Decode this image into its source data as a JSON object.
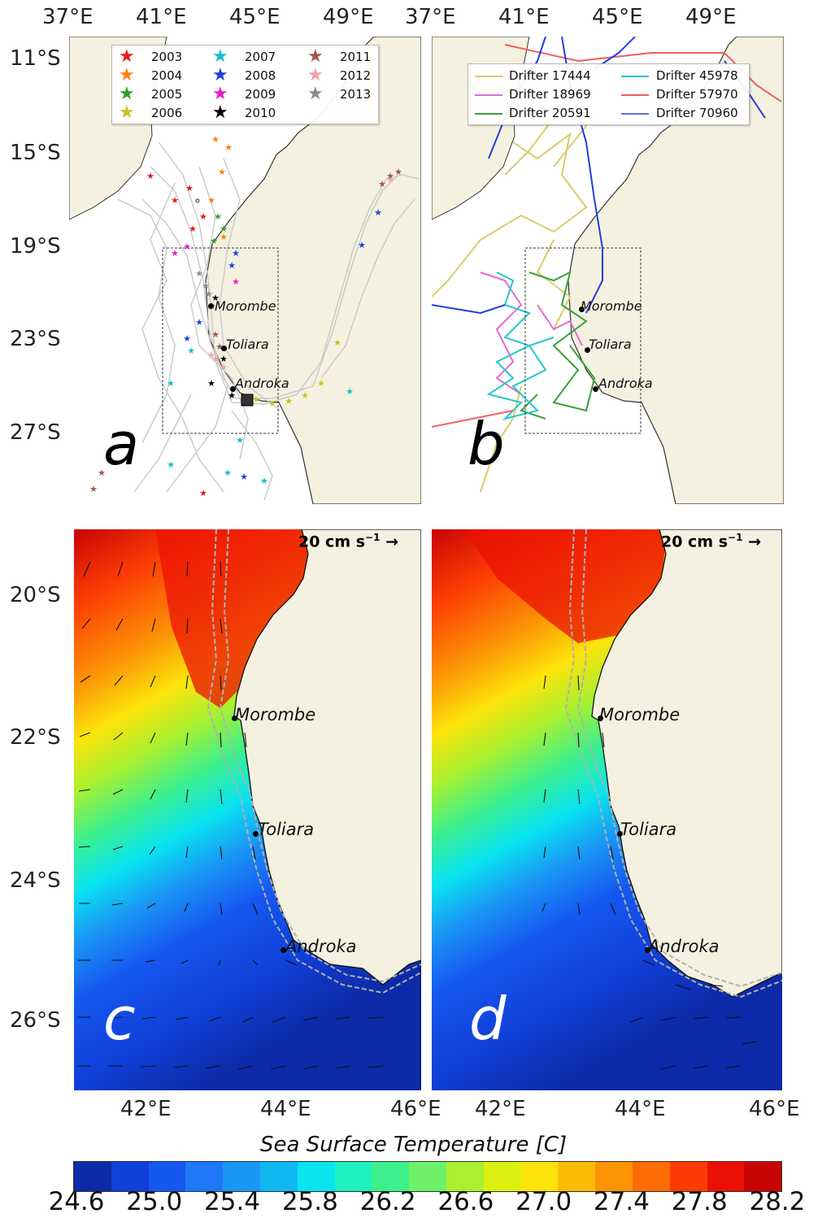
{
  "top_lon_ticks": [
    "37°E",
    "41°E",
    "45°E",
    "49°E"
  ],
  "top_lat_ticks": [
    "11°S",
    "15°S",
    "19°S",
    "23°S",
    "27°S"
  ],
  "bottom_lon_ticks": [
    "42°E",
    "44°E",
    "46°E"
  ],
  "bottom_lat_ticks": [
    "20°S",
    "22°S",
    "24°S",
    "26°S"
  ],
  "places": {
    "morombe": "Morombe",
    "toliara": "Toliara",
    "androka": "Androka"
  },
  "panel_a": {
    "letter": "a",
    "legend": [
      {
        "label": "2003",
        "color": "#e41a1c"
      },
      {
        "label": "2004",
        "color": "#ff7f0e"
      },
      {
        "label": "2005",
        "color": "#2ca02c"
      },
      {
        "label": "2006",
        "color": "#c9c41a"
      },
      {
        "label": "2007",
        "color": "#17becf"
      },
      {
        "label": "2008",
        "color": "#1f3fe0"
      },
      {
        "label": "2009",
        "color": "#e61ec8"
      },
      {
        "label": "2010",
        "color": "#000000"
      },
      {
        "label": "2011",
        "color": "#a0574e"
      },
      {
        "label": "2012",
        "color": "#f4a3a3"
      },
      {
        "label": "2013",
        "color": "#8c8c8c"
      }
    ]
  },
  "panel_b": {
    "letter": "b",
    "legend": [
      {
        "label": "Drifter 17444",
        "color": "#d8cc6a"
      },
      {
        "label": "Drifter 18969",
        "color": "#e46ad2"
      },
      {
        "label": "Drifter 20591",
        "color": "#3aa03a"
      },
      {
        "label": "Drifter 45978",
        "color": "#22c8cc"
      },
      {
        "label": "Drifter 57970",
        "color": "#ee6060"
      },
      {
        "label": "Drifter 70960",
        "color": "#5a6fe0"
      }
    ]
  },
  "panel_c": {
    "letter": "c",
    "scale_label": "20 cm s",
    "scale_exp": "−1"
  },
  "panel_d": {
    "letter": "d",
    "scale_label": "20 cm s",
    "scale_exp": "−1"
  },
  "colorbar": {
    "title": "Sea Surface Temperature [C]",
    "ticks": [
      "24.6",
      "25.0",
      "25.4",
      "25.8",
      "26.2",
      "26.6",
      "27.0",
      "27.4",
      "27.8",
      "28.2"
    ],
    "colors": [
      "#0d2ba8",
      "#1040d8",
      "#1558f0",
      "#1f78f8",
      "#1a96f4",
      "#10b8f2",
      "#08e4f0",
      "#1ef0c0",
      "#3ef08c",
      "#6ef06a",
      "#a8f030",
      "#dcf010",
      "#fce40a",
      "#fcbc06",
      "#fc9406",
      "#fc6c04",
      "#fc3c04",
      "#ec1004",
      "#c80404"
    ]
  },
  "colors": {
    "land": "#f4f1e0",
    "ocean": "#ffffff",
    "track_grey": "#c8c8c8"
  }
}
